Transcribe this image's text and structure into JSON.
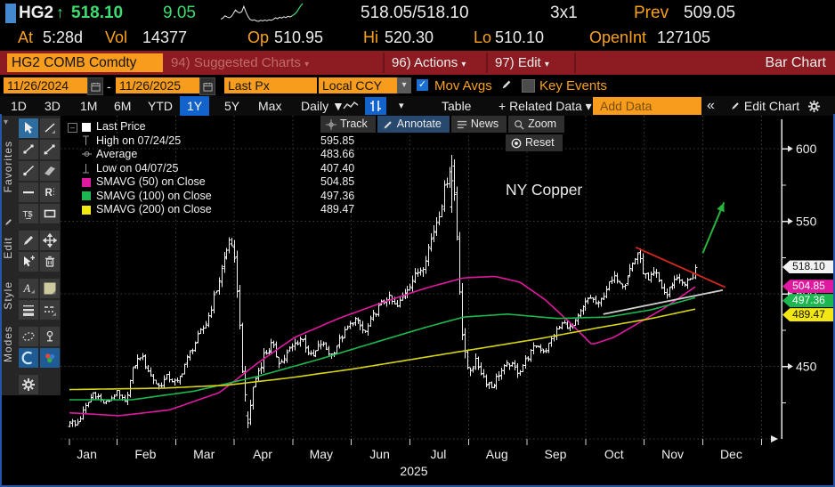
{
  "header": {
    "ticker": "HG2",
    "up_arrow": "↑",
    "last": "518.10",
    "change": "9.05",
    "bid_ask": "518.05/518.10",
    "lot": "3x1",
    "prev_label": "Prev",
    "prev": "509.05",
    "at_label": "At",
    "at_value": "5:28d",
    "vol_label": "Vol",
    "vol_value": "14377",
    "op_label": "Op",
    "op_value": "510.95",
    "hi_label": "Hi",
    "hi_value": "520.30",
    "lo_label": "Lo",
    "lo_value": "510.10",
    "oi_label": "OpenInt",
    "oi_value": "127105",
    "sparkline": [
      511,
      511.5,
      512.5,
      512,
      511.6,
      512.2,
      513.6,
      515.2,
      514.3,
      513.9,
      514.4,
      516.8,
      514.2,
      512.1,
      510.9,
      510.4,
      510.7,
      510.2,
      510.0,
      510.5,
      510.2,
      510.6,
      510.3,
      510.7,
      510.5,
      510.9,
      511.6,
      511.2,
      511.9,
      511.5,
      512.1,
      511.7,
      512.3,
      512.0,
      512.5,
      513.2,
      514.0,
      515.5,
      517.0,
      518.1
    ]
  },
  "menubar": {
    "security": "HG2 COMB Comdty",
    "suggested": "94) Suggested Charts",
    "actions": "96) Actions",
    "edit": "97) Edit",
    "title": "Bar Chart"
  },
  "toolbar": {
    "date_from": "11/26/2024",
    "date_sep": "-",
    "date_to": "11/26/2025",
    "px_type": "Last Px",
    "currency": "Local CCY",
    "mov_avgs_label": "Mov Avgs",
    "key_events_label": "Key Events",
    "check_glyph": "✓"
  },
  "tabbar": {
    "ranges": [
      "1D",
      "3D",
      "1M",
      "6M",
      "YTD",
      "1Y",
      "5Y",
      "Max"
    ],
    "active_range": "1Y",
    "period": "Daily ▼",
    "more_caret": "▾",
    "table": "Table",
    "related": "+ Related Data ▾",
    "add_data_placeholder": "Add Data",
    "collapse": "«",
    "edit_chart": "Edit Chart"
  },
  "sidebar": {
    "labels": [
      "Favorites",
      "Edit",
      "Style",
      "Modes"
    ],
    "tools": [
      {
        "name": "pointer-tool",
        "icon": "pointer",
        "active": true
      },
      {
        "name": "trendline-tool",
        "icon": "trend",
        "active": false
      },
      {
        "name": "segment-tool",
        "icon": "seg",
        "active": false
      },
      {
        "name": "arrow-segment-tool",
        "icon": "seg2",
        "active": false
      },
      {
        "name": "ray-tool",
        "icon": "ray",
        "active": false
      },
      {
        "name": "channel-tool",
        "icon": "channel",
        "active": false
      },
      {
        "name": "horizontal-line-tool",
        "icon": "hline",
        "active": false
      },
      {
        "name": "regression-tool",
        "icon": "reg",
        "active": false
      },
      {
        "name": "text-price-tool",
        "icon": "tprice",
        "active": false
      },
      {
        "name": "rectangle-tool",
        "icon": "rect",
        "active": false
      },
      {
        "name": "draw-tool",
        "icon": "pencil",
        "active": false
      },
      {
        "name": "move-tool",
        "icon": "move",
        "active": false
      },
      {
        "name": "select-plus-tool",
        "icon": "selplus",
        "active": false
      },
      {
        "name": "delete-tool",
        "icon": "trash",
        "active": false
      },
      {
        "name": "text-style-tool",
        "icon": "textA",
        "active": false
      },
      {
        "name": "color-swatch-tool",
        "icon": "swatch",
        "active": false
      },
      {
        "name": "line-width-tool",
        "icon": "lw",
        "active": false
      },
      {
        "name": "line-style-tool",
        "icon": "ls",
        "active": false
      },
      {
        "name": "ellipse-mode-tool",
        "icon": "ellipse",
        "active": false
      },
      {
        "name": "pin-mode-tool",
        "icon": "pin",
        "active": false
      },
      {
        "name": "arc-mode-tool",
        "icon": "arc",
        "active": "blue"
      },
      {
        "name": "palette-tool",
        "icon": "palette",
        "active": "blue"
      },
      {
        "name": "settings-tool",
        "icon": "gear",
        "active": false
      }
    ]
  },
  "chart_toolbar": {
    "track": "Track",
    "annotate": "Annotate",
    "news": "News",
    "zoom": "Zoom",
    "reset": "Reset"
  },
  "legend": {
    "rows": [
      {
        "kind": "swatch",
        "color": "#ffffff",
        "label": "Last Price",
        "value": "518.10"
      },
      {
        "kind": "high",
        "label": "High on 07/24/25",
        "value": "595.85"
      },
      {
        "kind": "avg",
        "label": "Average",
        "value": "483.66"
      },
      {
        "kind": "low",
        "label": "Low on 04/07/25",
        "value": "407.40"
      },
      {
        "kind": "swatch",
        "color": "#e01aa0",
        "label": "SMAVG (50) on Close",
        "value": "504.85"
      },
      {
        "kind": "swatch",
        "color": "#1cb84f",
        "label": "SMAVG (100) on Close",
        "value": "497.36"
      },
      {
        "kind": "swatch",
        "color": "#f2e713",
        "label": "SMAVG (200) on Close",
        "value": "489.47"
      }
    ]
  },
  "badges": [
    {
      "text": "518.10",
      "price": 518.1,
      "bg": "#f2f2f2",
      "fg": "#111111"
    },
    {
      "text": "504.85",
      "price": 504.85,
      "bg": "#e01aa0",
      "fg": "#ffffff"
    },
    {
      "text": "497.36",
      "price": 497.36,
      "bg": "#1cb84f",
      "fg": "#ffffff"
    },
    {
      "text": "489.47",
      "price": 489.47,
      "bg": "#f2e713",
      "fg": "#111111"
    }
  ],
  "chart_data": {
    "type": "ohlc_bar",
    "title": "NY Copper",
    "instrument": "HG2 COMB Comdty",
    "x_range": [
      "11/26/2024",
      "11/26/2025"
    ],
    "months": [
      "Jan",
      "Feb",
      "Mar",
      "Apr",
      "May",
      "Jun",
      "Jul",
      "Aug",
      "Sep",
      "Oct",
      "Nov",
      "Dec"
    ],
    "year_label": "2025",
    "ylim": [
      396,
      623
    ],
    "yticks_major": [
      450,
      500,
      550,
      600
    ],
    "yticks_minor": [
      425,
      475,
      525,
      575
    ],
    "grid": "dotted",
    "bar_count": 240,
    "bar_color": "#f0f0f0",
    "stats": {
      "last": 518.1,
      "high": {
        "date": "07/24/25",
        "value": 595.85
      },
      "average": 483.66,
      "low": {
        "date": "04/07/25",
        "value": 407.4
      },
      "today": {
        "open": 510.95,
        "high": 520.3,
        "low": 510.1,
        "close": 518.1,
        "volume": 14377,
        "open_interest": 127105,
        "prev": 509.05
      }
    },
    "price_anchors": [
      [
        0,
        413
      ],
      [
        0.01,
        409
      ],
      [
        0.024,
        421
      ],
      [
        0.038,
        432
      ],
      [
        0.057,
        424
      ],
      [
        0.074,
        432
      ],
      [
        0.088,
        425
      ],
      [
        0.102,
        450
      ],
      [
        0.114,
        458
      ],
      [
        0.128,
        445
      ],
      [
        0.142,
        436
      ],
      [
        0.156,
        443
      ],
      [
        0.171,
        438
      ],
      [
        0.188,
        455
      ],
      [
        0.205,
        470
      ],
      [
        0.219,
        481
      ],
      [
        0.235,
        504
      ],
      [
        0.247,
        524
      ],
      [
        0.256,
        537
      ],
      [
        0.266,
        516
      ],
      [
        0.273,
        470
      ],
      [
        0.279,
        432
      ],
      [
        0.284,
        411
      ],
      [
        0.294,
        438
      ],
      [
        0.309,
        457
      ],
      [
        0.323,
        465
      ],
      [
        0.337,
        452
      ],
      [
        0.351,
        461
      ],
      [
        0.37,
        470
      ],
      [
        0.387,
        455
      ],
      [
        0.401,
        466
      ],
      [
        0.418,
        458
      ],
      [
        0.437,
        472
      ],
      [
        0.455,
        483
      ],
      [
        0.472,
        473
      ],
      [
        0.489,
        488
      ],
      [
        0.508,
        498
      ],
      [
        0.522,
        490
      ],
      [
        0.536,
        502
      ],
      [
        0.55,
        511
      ],
      [
        0.565,
        520
      ],
      [
        0.579,
        540
      ],
      [
        0.593,
        561
      ],
      [
        0.605,
        584
      ],
      [
        0.61,
        591
      ],
      [
        0.617,
        560
      ],
      [
        0.623,
        508
      ],
      [
        0.629,
        462
      ],
      [
        0.637,
        448
      ],
      [
        0.65,
        453
      ],
      [
        0.664,
        440
      ],
      [
        0.674,
        436
      ],
      [
        0.688,
        446
      ],
      [
        0.703,
        452
      ],
      [
        0.717,
        446
      ],
      [
        0.731,
        456
      ],
      [
        0.745,
        465
      ],
      [
        0.76,
        460
      ],
      [
        0.774,
        472
      ],
      [
        0.788,
        480
      ],
      [
        0.802,
        476
      ],
      [
        0.817,
        488
      ],
      [
        0.831,
        498
      ],
      [
        0.845,
        492
      ],
      [
        0.859,
        505
      ],
      [
        0.873,
        512
      ],
      [
        0.885,
        506
      ],
      [
        0.896,
        518
      ],
      [
        0.908,
        528
      ],
      [
        0.916,
        516
      ],
      [
        0.925,
        508
      ],
      [
        0.935,
        515
      ],
      [
        0.944,
        506
      ],
      [
        0.953,
        498
      ],
      [
        0.963,
        508
      ],
      [
        0.973,
        512
      ],
      [
        0.981,
        505
      ],
      [
        0.99,
        510
      ],
      [
        1,
        518.1
      ]
    ],
    "volatility_anchors": [
      [
        0,
        5
      ],
      [
        0.1,
        4.5
      ],
      [
        0.2,
        5.5
      ],
      [
        0.24,
        7
      ],
      [
        0.28,
        9
      ],
      [
        0.32,
        6
      ],
      [
        0.45,
        5
      ],
      [
        0.55,
        6
      ],
      [
        0.6,
        9
      ],
      [
        0.63,
        10
      ],
      [
        0.66,
        6
      ],
      [
        0.75,
        4.5
      ],
      [
        0.85,
        5
      ],
      [
        0.91,
        6
      ],
      [
        0.97,
        4.5
      ],
      [
        1,
        4
      ]
    ],
    "key_points": [
      {
        "kind": "peak",
        "date": "03/26/25",
        "u": 0.256,
        "price": 537.0
      },
      {
        "kind": "low",
        "date": "04/07/25",
        "u": 0.284,
        "price": 407.4
      },
      {
        "kind": "high",
        "date": "07/24/25",
        "u": 0.61,
        "price": 595.85
      },
      {
        "kind": "last",
        "date": "11/26/25",
        "u": 1.0,
        "price": 518.1
      }
    ],
    "smavg": [
      {
        "name": "SMAVG (50) on Close",
        "color": "#e01aa0",
        "last": 504.85,
        "anchors": [
          [
            0,
            418
          ],
          [
            0.08,
            416
          ],
          [
            0.16,
            420
          ],
          [
            0.24,
            432
          ],
          [
            0.3,
            452
          ],
          [
            0.36,
            470
          ],
          [
            0.43,
            483
          ],
          [
            0.5,
            494
          ],
          [
            0.57,
            504
          ],
          [
            0.63,
            511
          ],
          [
            0.68,
            512
          ],
          [
            0.72,
            508
          ],
          [
            0.76,
            496
          ],
          [
            0.8,
            480
          ],
          [
            0.835,
            465
          ],
          [
            0.87,
            470
          ],
          [
            0.91,
            480
          ],
          [
            0.95,
            490
          ],
          [
            1,
            504.85
          ]
        ]
      },
      {
        "name": "SMAVG (100) on Close",
        "color": "#1cb84f",
        "last": 497.36,
        "anchors": [
          [
            0,
            427
          ],
          [
            0.1,
            427
          ],
          [
            0.2,
            433
          ],
          [
            0.3,
            443
          ],
          [
            0.4,
            455
          ],
          [
            0.5,
            468
          ],
          [
            0.57,
            477
          ],
          [
            0.63,
            484
          ],
          [
            0.7,
            486
          ],
          [
            0.78,
            483
          ],
          [
            0.86,
            484
          ],
          [
            0.93,
            489
          ],
          [
            1,
            497.36
          ]
        ]
      },
      {
        "name": "SMAVG (200) on Close",
        "color": "#d8d417",
        "last": 489.47,
        "anchors": [
          [
            0,
            434
          ],
          [
            0.15,
            435
          ],
          [
            0.25,
            437
          ],
          [
            0.35,
            442
          ],
          [
            0.45,
            448
          ],
          [
            0.55,
            455
          ],
          [
            0.65,
            462
          ],
          [
            0.75,
            469
          ],
          [
            0.85,
            477
          ],
          [
            0.93,
            483
          ],
          [
            1,
            489.47
          ]
        ]
      }
    ],
    "annotations": {
      "trendlines": [
        {
          "name": "resistance-line",
          "color": "#d3281e",
          "from": {
            "u": 0.905,
            "price": 532
          },
          "to": {
            "u": 1.048,
            "price": 504.5
          }
        },
        {
          "name": "support-line",
          "color": "#cfcfcf",
          "from": {
            "u": 0.853,
            "price": 486
          },
          "to": {
            "u": 1.044,
            "price": 502.5
          }
        }
      ],
      "arrow": {
        "name": "breakout-arrow",
        "color": "#28b43e",
        "from": {
          "u": 1.012,
          "price": 528
        },
        "to": {
          "u": 1.046,
          "price": 563
        }
      },
      "text": {
        "label": "NY Copper"
      }
    }
  }
}
